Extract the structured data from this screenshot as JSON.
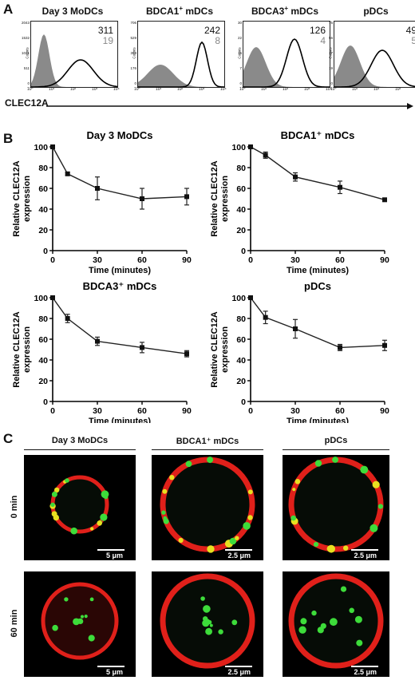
{
  "panels": {
    "a": "A",
    "b": "B",
    "c": "C"
  },
  "histograms": {
    "x_axis_label": "CLEC12A",
    "ylabel_small": "Counts",
    "xticks": [
      "10⁰",
      "10¹",
      "10²",
      "10³",
      "10⁴"
    ],
    "items": [
      {
        "title_pre": "Day 3 MoDCs",
        "title_sup": "",
        "title_post": "",
        "mfi": "311",
        "iso": "19",
        "ymax": "2043",
        "yticks": [
          "2043",
          "1532",
          "1021",
          "511",
          "0"
        ]
      },
      {
        "title_pre": "BDCA1",
        "title_sup": "+",
        "title_post": " mDCs",
        "mfi": "242",
        "iso": "8",
        "ymax": "706",
        "yticks": [
          "706",
          "529",
          "353",
          "176",
          "0"
        ]
      },
      {
        "title_pre": "BDCA3",
        "title_sup": "+",
        "title_post": " mDCs",
        "mfi": "126",
        "iso": "4",
        "ymax": "30",
        "yticks": [
          "30",
          "22",
          "15",
          "7",
          "0"
        ]
      },
      {
        "title_pre": "pDCs",
        "title_sup": "",
        "title_post": "",
        "mfi": "49",
        "iso": "5",
        "ymax": "75",
        "yticks": [
          "75",
          "56",
          "37",
          "19",
          "0"
        ]
      }
    ]
  },
  "chart_data": [
    {
      "type": "line",
      "title": "Day 3 MoDCs",
      "xlabel": "Time (minutes)",
      "ylabel": "Relative CLEC12A expression",
      "x": [
        0,
        10,
        30,
        60,
        90
      ],
      "y": [
        100,
        74,
        60,
        50,
        52
      ],
      "err": [
        0,
        1.5,
        11,
        10,
        8
      ],
      "xlim": [
        0,
        90
      ],
      "ylim": [
        0,
        100
      ],
      "xticks": [
        0,
        30,
        60,
        90
      ],
      "yticks": [
        0,
        20,
        40,
        60,
        80,
        100
      ]
    },
    {
      "type": "line",
      "title": "BDCA1⁺ mDCs",
      "xlabel": "Time (minutes)",
      "ylabel": "Relative CLEC12A expression",
      "x": [
        0,
        10,
        30,
        60,
        90
      ],
      "y": [
        100,
        92,
        71,
        61,
        49
      ],
      "err": [
        0,
        3,
        4,
        6,
        1.5
      ],
      "xlim": [
        0,
        90
      ],
      "ylim": [
        0,
        100
      ],
      "xticks": [
        0,
        30,
        60,
        90
      ],
      "yticks": [
        0,
        20,
        40,
        60,
        80,
        100
      ]
    },
    {
      "type": "line",
      "title": "BDCA3⁺ mDCs",
      "xlabel": "Time (minutes)",
      "ylabel": "Relative CLEC12A expression",
      "x": [
        0,
        10,
        30,
        60,
        90
      ],
      "y": [
        100,
        80,
        58,
        52,
        46
      ],
      "err": [
        0,
        4,
        4,
        5,
        3
      ],
      "xlim": [
        0,
        90
      ],
      "ylim": [
        0,
        100
      ],
      "xticks": [
        0,
        30,
        60,
        90
      ],
      "yticks": [
        0,
        20,
        40,
        60,
        80,
        100
      ]
    },
    {
      "type": "line",
      "title": "pDCs",
      "xlabel": "Time (minutes)",
      "ylabel": "Relative CLEC12A expression",
      "x": [
        0,
        10,
        30,
        60,
        90
      ],
      "y": [
        100,
        81,
        70,
        52,
        54
      ],
      "err": [
        0,
        6,
        9,
        3,
        5
      ],
      "xlim": [
        0,
        90
      ],
      "ylim": [
        0,
        100
      ],
      "xticks": [
        0,
        30,
        60,
        90
      ],
      "yticks": [
        0,
        20,
        40,
        60,
        80,
        100
      ]
    }
  ],
  "confocal": {
    "columns": [
      "Day 3 MoDCs",
      "BDCA1⁺ mDCs",
      "pDCs"
    ],
    "rows": [
      "0 min",
      "60 min"
    ],
    "scales": [
      "5 μm",
      "2.5 μm",
      "2.5 μm",
      "5 μm",
      "2.5 μm",
      "2.5 μm"
    ],
    "colors": {
      "membrane": "#e0201a",
      "clec12a": "#3ddc3a",
      "overlap": "#e8e020"
    }
  }
}
